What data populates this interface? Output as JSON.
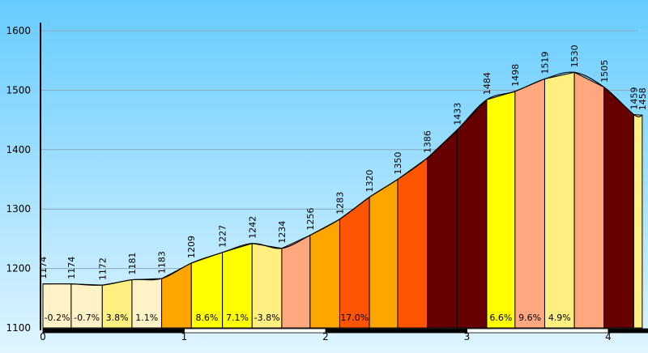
{
  "chart_data": {
    "type": "area",
    "title": "",
    "xlabel": "",
    "ylabel": "",
    "xlim": [
      0,
      4.3
    ],
    "ylim": [
      1100,
      1600
    ],
    "grid": true,
    "y_ticks": [
      "1100",
      "1200",
      "1300",
      "1400",
      "1500",
      "1600"
    ],
    "x_ticks": [
      "0",
      "1",
      "2",
      "3",
      "4"
    ],
    "x": [
      0,
      0.2,
      0.42,
      0.63,
      0.84,
      1.05,
      1.27,
      1.48,
      1.69,
      1.89,
      2.1,
      2.31,
      2.51,
      2.72,
      2.93,
      3.14,
      3.34,
      3.55,
      3.76,
      3.97,
      4.18,
      4.24
    ],
    "elevations": [
      1174,
      1174,
      1172,
      1181,
      1183,
      1209,
      1227,
      1242,
      1234,
      1256,
      1283,
      1320,
      1350,
      1386,
      1433,
      1484,
      1498,
      1519,
      1530,
      1505,
      1459,
      1458
    ],
    "elevation_labels": [
      "1174",
      "1174",
      "1172",
      "1181",
      "1183",
      "1209",
      "1227",
      "1242",
      "1234",
      "1256",
      "1283",
      "1320",
      "1350",
      "1386",
      "1433",
      "1484",
      "1498",
      "1519",
      "1530",
      "1505",
      "1459",
      "1458"
    ],
    "gradients": [
      "-0.2%",
      "-0.7%",
      "3.8%",
      "1.1%",
      "",
      "8.6%",
      "7.1%",
      "-3.8%",
      "",
      "",
      "17.0%",
      "",
      "",
      "",
      "",
      "6.6%",
      "9.6%",
      "4.9%",
      "",
      "",
      ""
    ],
    "segment_colors": [
      "#FFF2C6",
      "#FFF2C6",
      "#FFEE80",
      "#FFF2C6",
      "#FFA500",
      "#FFFF00",
      "#FFFF00",
      "#FFEE80",
      "#FFA880",
      "#FFA500",
      "#FF5500",
      "#FFA500",
      "#FF5500",
      "#660000",
      "#660000",
      "#FFFF00",
      "#FFA880",
      "#FFEE80",
      "#FFA880",
      "#660000",
      "#FFEE80"
    ]
  },
  "colors": {
    "sky_top": "#66CCFF",
    "sky_bottom": "#E0F5FF",
    "outline": "#000000"
  }
}
